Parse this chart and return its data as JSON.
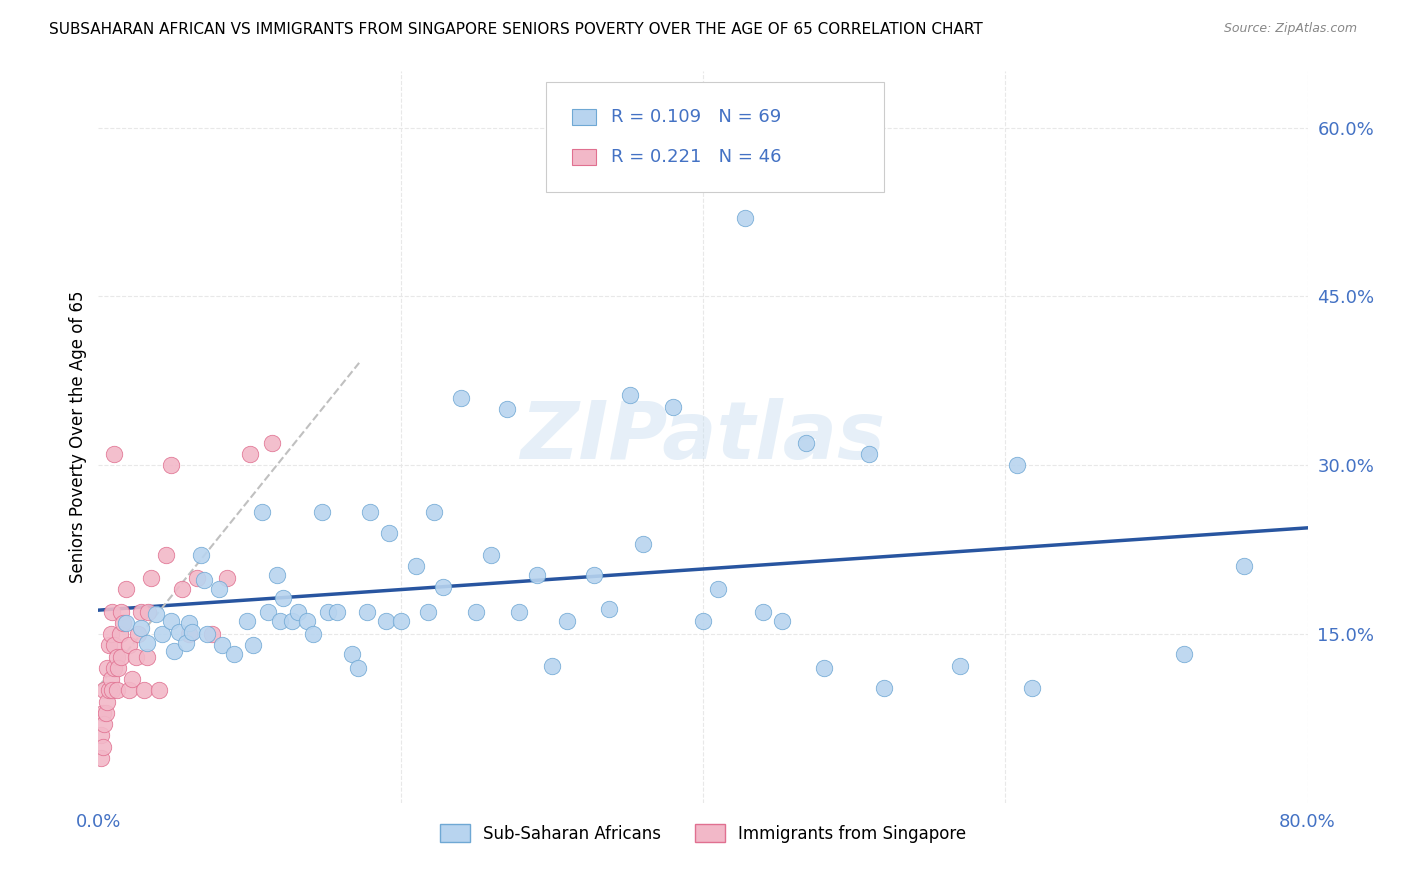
{
  "title": "SUBSAHARAN AFRICAN VS IMMIGRANTS FROM SINGAPORE SENIORS POVERTY OVER THE AGE OF 65 CORRELATION CHART",
  "source": "Source: ZipAtlas.com",
  "ylabel": "Seniors Poverty Over the Age of 65",
  "background_color": "#ffffff",
  "watermark": "ZIPatlas",
  "xlim": [
    0.0,
    0.8
  ],
  "ylim": [
    0.0,
    0.65
  ],
  "yticks": [
    0.15,
    0.3,
    0.45,
    0.6
  ],
  "ytick_labels": [
    "15.0%",
    "30.0%",
    "45.0%",
    "60.0%"
  ],
  "xtick_left_label": "0.0%",
  "xtick_right_label": "80.0%",
  "grid_color": "#e8e8e8",
  "grid_xticks": [
    0.2,
    0.4,
    0.6,
    0.8
  ],
  "series_blue": {
    "label": "Sub-Saharan Africans",
    "color": "#b8d4ef",
    "edge_color": "#6fa8d4",
    "R": 0.109,
    "N": 69,
    "line_color": "#2855a0",
    "x": [
      0.018,
      0.028,
      0.032,
      0.038,
      0.042,
      0.048,
      0.05,
      0.053,
      0.058,
      0.06,
      0.062,
      0.068,
      0.07,
      0.072,
      0.08,
      0.082,
      0.09,
      0.098,
      0.102,
      0.108,
      0.112,
      0.118,
      0.12,
      0.122,
      0.128,
      0.132,
      0.138,
      0.142,
      0.148,
      0.152,
      0.158,
      0.168,
      0.172,
      0.178,
      0.18,
      0.19,
      0.192,
      0.2,
      0.21,
      0.218,
      0.222,
      0.228,
      0.24,
      0.25,
      0.26,
      0.27,
      0.278,
      0.29,
      0.3,
      0.31,
      0.328,
      0.338,
      0.352,
      0.36,
      0.38,
      0.4,
      0.41,
      0.428,
      0.44,
      0.452,
      0.468,
      0.48,
      0.51,
      0.52,
      0.57,
      0.608,
      0.618,
      0.718,
      0.758
    ],
    "y": [
      0.16,
      0.155,
      0.142,
      0.168,
      0.15,
      0.162,
      0.135,
      0.152,
      0.142,
      0.16,
      0.152,
      0.22,
      0.198,
      0.15,
      0.19,
      0.14,
      0.132,
      0.162,
      0.14,
      0.258,
      0.17,
      0.202,
      0.162,
      0.182,
      0.162,
      0.17,
      0.162,
      0.15,
      0.258,
      0.17,
      0.17,
      0.132,
      0.12,
      0.17,
      0.258,
      0.162,
      0.24,
      0.162,
      0.21,
      0.17,
      0.258,
      0.192,
      0.36,
      0.17,
      0.22,
      0.35,
      0.17,
      0.202,
      0.122,
      0.162,
      0.202,
      0.172,
      0.362,
      0.23,
      0.352,
      0.162,
      0.19,
      0.52,
      0.17,
      0.162,
      0.32,
      0.12,
      0.31,
      0.102,
      0.122,
      0.3,
      0.102,
      0.132,
      0.21
    ]
  },
  "series_pink": {
    "label": "Immigrants from Singapore",
    "color": "#f2b8c8",
    "edge_color": "#e07090",
    "R": 0.221,
    "N": 46,
    "trend_color": "#d0a0b0",
    "x": [
      0.002,
      0.002,
      0.003,
      0.003,
      0.004,
      0.004,
      0.005,
      0.006,
      0.006,
      0.007,
      0.007,
      0.008,
      0.008,
      0.009,
      0.009,
      0.01,
      0.01,
      0.01,
      0.012,
      0.012,
      0.013,
      0.014,
      0.015,
      0.015,
      0.016,
      0.018,
      0.02,
      0.02,
      0.022,
      0.025,
      0.026,
      0.028,
      0.03,
      0.032,
      0.033,
      0.035,
      0.04,
      0.045,
      0.048,
      0.055,
      0.06,
      0.065,
      0.075,
      0.085,
      0.1,
      0.115
    ],
    "y": [
      0.04,
      0.06,
      0.05,
      0.08,
      0.07,
      0.1,
      0.08,
      0.09,
      0.12,
      0.1,
      0.14,
      0.11,
      0.15,
      0.1,
      0.17,
      0.12,
      0.14,
      0.31,
      0.1,
      0.13,
      0.12,
      0.15,
      0.13,
      0.17,
      0.16,
      0.19,
      0.1,
      0.14,
      0.11,
      0.13,
      0.15,
      0.17,
      0.1,
      0.13,
      0.17,
      0.2,
      0.1,
      0.22,
      0.3,
      0.19,
      0.15,
      0.2,
      0.15,
      0.2,
      0.31,
      0.32
    ]
  },
  "legend_R_color": "#4472c4",
  "legend_N_color": "#4472c4",
  "title_fontsize": 11,
  "tick_color": "#4472c4",
  "ylabel_fontsize": 12
}
